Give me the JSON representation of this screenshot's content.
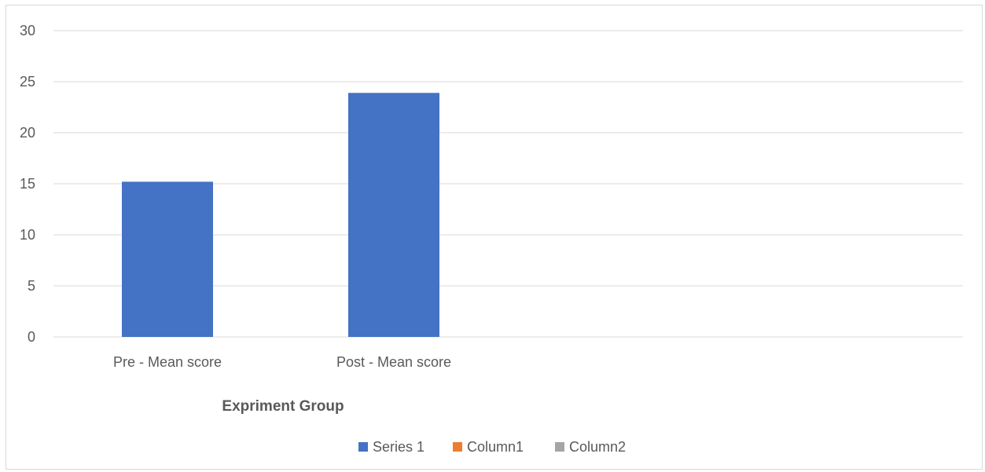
{
  "chart_data": {
    "type": "bar",
    "categories": [
      "Pre - Mean score",
      "Post - Mean score"
    ],
    "series": [
      {
        "name": "Series 1",
        "values": [
          15.2,
          23.9
        ],
        "color": "#4472c4"
      },
      {
        "name": "Column1",
        "values": [
          null,
          null
        ],
        "color": "#ed7d31"
      },
      {
        "name": "Column2",
        "values": [
          null,
          null
        ],
        "color": "#a5a5a5"
      }
    ],
    "title": "",
    "xlabel": "Expriment Group",
    "ylabel": "",
    "ylim": [
      0,
      30
    ],
    "yticks": [
      0,
      5,
      10,
      15,
      20,
      25,
      30
    ],
    "grid": true,
    "legend_position": "bottom"
  }
}
